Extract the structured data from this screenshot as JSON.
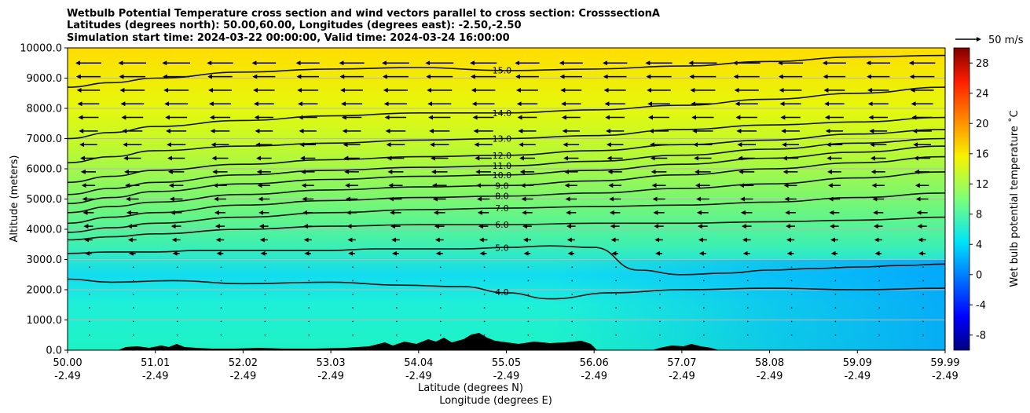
{
  "chart_data": {
    "type": "heatmap",
    "title_lines": [
      "Wetbulb Potential Temperature cross section and wind vectors parallel to cross section: CrosssectionA",
      "Latitudes (degrees north): 50.00,60.00, Longitudes (degrees east): -2.50,-2.50",
      "Simulation start time: 2024-03-22 00:00:00, Valid time: 2024-03-24 16:00:00"
    ],
    "xlabel_1": "Latitude (degrees N)",
    "xlabel_2": "Longitude (degrees E)",
    "ylabel": "Altitude (meters)",
    "colorbar_label": "Wet bulb potential temperature ˚C",
    "quiver_key_label": "50 m/s",
    "x_ticks": [
      {
        "lat": "50.00",
        "lon": "-2.49"
      },
      {
        "lat": "51.01",
        "lon": "-2.49"
      },
      {
        "lat": "52.02",
        "lon": "-2.49"
      },
      {
        "lat": "53.03",
        "lon": "-2.49"
      },
      {
        "lat": "54.04",
        "lon": "-2.49"
      },
      {
        "lat": "55.05",
        "lon": "-2.49"
      },
      {
        "lat": "56.06",
        "lon": "-2.49"
      },
      {
        "lat": "57.07",
        "lon": "-2.49"
      },
      {
        "lat": "58.08",
        "lon": "-2.49"
      },
      {
        "lat": "59.09",
        "lon": "-2.49"
      },
      {
        "lat": "59.99",
        "lon": "-2.49"
      }
    ],
    "y_ticks": [
      "0.0",
      "1000.0",
      "2000.0",
      "3000.0",
      "4000.0",
      "5000.0",
      "6000.0",
      "7000.0",
      "8000.0",
      "9000.0",
      "10000.0"
    ],
    "y_values": [
      0,
      1000,
      2000,
      3000,
      4000,
      5000,
      6000,
      7000,
      8000,
      9000,
      10000
    ],
    "ylim": [
      0,
      10000
    ],
    "colorbar_ticks": [
      "-8",
      "-4",
      "0",
      "4",
      "8",
      "12",
      "16",
      "20",
      "24",
      "28"
    ],
    "colorbar_values": [
      -8,
      -4,
      0,
      4,
      8,
      12,
      16,
      20,
      24,
      28
    ],
    "colorbar_range": [
      -10,
      30
    ],
    "grid": "horizontal",
    "contours": [
      {
        "level": 4.0,
        "label": "4.0",
        "x_frac": [
          0,
          0.05,
          0.12,
          0.2,
          0.3,
          0.38,
          0.45,
          0.5,
          0.55,
          0.62,
          0.7,
          0.8,
          0.9,
          1.0
        ],
        "alt": [
          2350,
          2250,
          2300,
          2200,
          2250,
          2150,
          2100,
          1900,
          1700,
          1900,
          2000,
          2050,
          2000,
          2050
        ]
      },
      {
        "level": 5.0,
        "label": "5.0",
        "x_frac": [
          0,
          0.05,
          0.1,
          0.15,
          0.2,
          0.25,
          0.3,
          0.35,
          0.4,
          0.45,
          0.5,
          0.55,
          0.6,
          0.65,
          0.7,
          0.75,
          0.8,
          0.85,
          0.9,
          0.95,
          1.0
        ],
        "alt": [
          3200,
          3250,
          3250,
          3300,
          3300,
          3300,
          3300,
          3350,
          3350,
          3350,
          3400,
          3450,
          3400,
          2650,
          2500,
          2550,
          2650,
          2700,
          2750,
          2800,
          2850
        ]
      },
      {
        "level": 6.0,
        "label": "6.0",
        "x_frac": [
          0,
          0.05,
          0.1,
          0.2,
          0.3,
          0.4,
          0.5,
          0.6,
          0.7,
          0.8,
          0.9,
          1.0
        ],
        "alt": [
          3650,
          3750,
          3850,
          4000,
          4100,
          4150,
          4150,
          4200,
          4200,
          4250,
          4300,
          4400
        ]
      },
      {
        "level": 7.0,
        "label": "7.0",
        "x_frac": [
          0,
          0.05,
          0.1,
          0.2,
          0.3,
          0.4,
          0.5,
          0.6,
          0.7,
          0.8,
          0.9,
          1.0
        ],
        "alt": [
          3900,
          4050,
          4200,
          4400,
          4550,
          4650,
          4700,
          4750,
          4800,
          4900,
          5050,
          5200
        ]
      },
      {
        "level": 8.0,
        "label": "8.0",
        "x_frac": [
          0,
          0.05,
          0.1,
          0.2,
          0.3,
          0.4,
          0.5,
          0.6,
          0.7,
          0.8,
          0.9,
          1.0
        ],
        "alt": [
          4200,
          4400,
          4550,
          4800,
          4950,
          5050,
          5100,
          5200,
          5350,
          5500,
          5700,
          5900
        ]
      },
      {
        "level": 9.0,
        "label": "9.0",
        "x_frac": [
          0,
          0.05,
          0.1,
          0.2,
          0.3,
          0.4,
          0.5,
          0.6,
          0.7,
          0.8,
          0.9,
          1.0
        ],
        "alt": [
          4550,
          4750,
          4900,
          5150,
          5300,
          5400,
          5450,
          5600,
          5800,
          6000,
          6200,
          6400
        ]
      },
      {
        "level": 10.0,
        "label": "10.0",
        "x_frac": [
          0,
          0.05,
          0.1,
          0.2,
          0.3,
          0.4,
          0.5,
          0.6,
          0.7,
          0.8,
          0.9,
          1.0
        ],
        "alt": [
          4850,
          5050,
          5250,
          5500,
          5650,
          5750,
          5800,
          5950,
          6150,
          6350,
          6550,
          6750
        ]
      },
      {
        "level": 11.0,
        "label": "11.0",
        "x_frac": [
          0,
          0.05,
          0.1,
          0.2,
          0.3,
          0.4,
          0.5,
          0.6,
          0.7,
          0.8,
          0.9,
          1.0
        ],
        "alt": [
          5150,
          5350,
          5550,
          5800,
          5950,
          6050,
          6100,
          6250,
          6450,
          6650,
          6850,
          7000
        ]
      },
      {
        "level": 12.0,
        "label": "12.0",
        "x_frac": [
          0,
          0.05,
          0.1,
          0.2,
          0.3,
          0.4,
          0.5,
          0.6,
          0.7,
          0.8,
          0.9,
          1.0
        ],
        "alt": [
          5550,
          5750,
          5950,
          6150,
          6300,
          6400,
          6450,
          6600,
          6800,
          6950,
          7150,
          7300
        ]
      },
      {
        "level": 13.0,
        "label": "13.0",
        "x_frac": [
          0,
          0.05,
          0.1,
          0.2,
          0.3,
          0.4,
          0.5,
          0.6,
          0.7,
          0.8,
          0.9,
          1.0
        ],
        "alt": [
          6200,
          6400,
          6600,
          6750,
          6850,
          6950,
          7000,
          7100,
          7300,
          7450,
          7550,
          7700
        ]
      },
      {
        "level": 14.0,
        "label": "14.0",
        "x_frac": [
          0,
          0.05,
          0.1,
          0.2,
          0.3,
          0.4,
          0.5,
          0.6,
          0.7,
          0.8,
          0.9,
          1.0
        ],
        "alt": [
          7000,
          7200,
          7400,
          7600,
          7750,
          7850,
          7850,
          7950,
          8100,
          8300,
          8500,
          8700
        ]
      },
      {
        "level": 15.0,
        "label": "15.0",
        "x_frac": [
          0,
          0.05,
          0.1,
          0.2,
          0.3,
          0.4,
          0.5,
          0.6,
          0.7,
          0.8,
          0.9,
          1.0
        ],
        "alt": [
          8700,
          8850,
          9000,
          9200,
          9300,
          9350,
          9250,
          9300,
          9400,
          9550,
          9700,
          9750
        ]
      }
    ]
  }
}
